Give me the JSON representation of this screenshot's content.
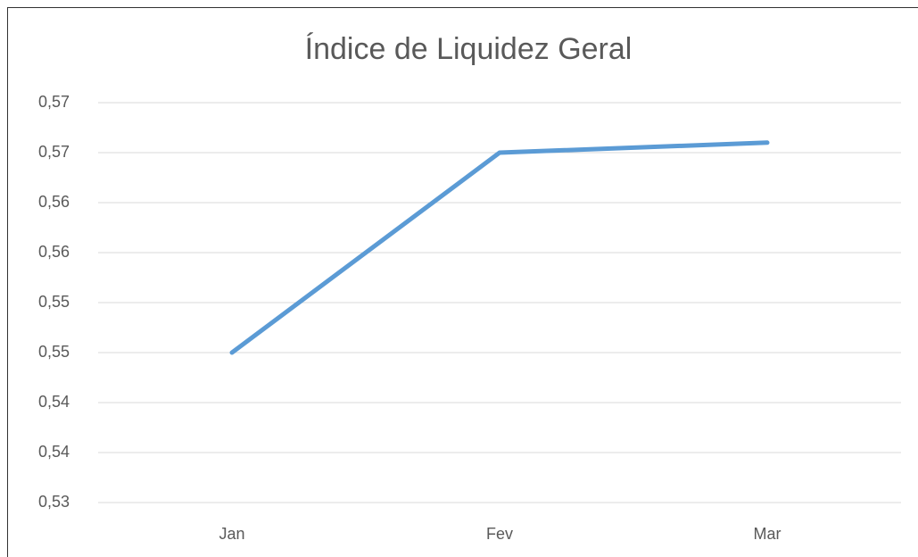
{
  "chart_data": {
    "type": "line",
    "title": "Índice de Liquidez Geral",
    "categories": [
      "Jan",
      "Fev",
      "Mar"
    ],
    "values": [
      0.545,
      0.565,
      0.566
    ],
    "color": "#5b9bd5",
    "ylim": [
      0.53,
      0.57
    ],
    "yticks": [
      {
        "value": 0.53,
        "label": "0,53"
      },
      {
        "value": 0.535,
        "label": "0,54"
      },
      {
        "value": 0.54,
        "label": "0,54"
      },
      {
        "value": 0.545,
        "label": "0,55"
      },
      {
        "value": 0.55,
        "label": "0,55"
      },
      {
        "value": 0.555,
        "label": "0,56"
      },
      {
        "value": 0.56,
        "label": "0,56"
      },
      {
        "value": 0.565,
        "label": "0,57"
      },
      {
        "value": 0.57,
        "label": "0,57"
      }
    ],
    "grid": true
  }
}
